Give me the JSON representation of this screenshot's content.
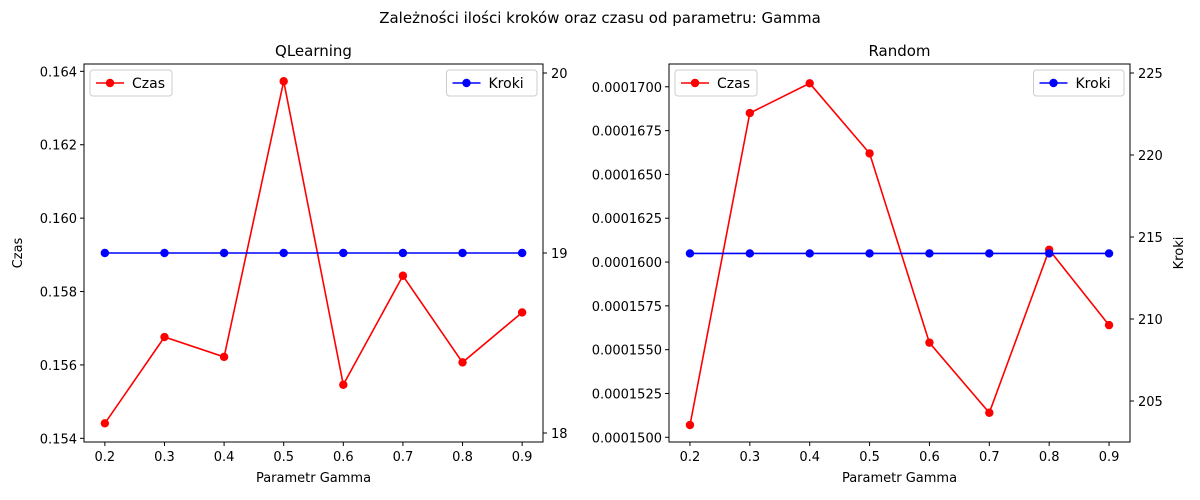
{
  "figure": {
    "suptitle": "Zależności ilości kroków oraz czasu od parametru: Gamma"
  },
  "chart_data": [
    {
      "type": "line",
      "title": "QLearning",
      "xlabel": "Parametr Gamma",
      "ylabel_left": "Czas",
      "ylabel_right": "",
      "x": [
        0.2,
        0.3,
        0.4,
        0.5,
        0.6,
        0.7,
        0.8,
        0.9
      ],
      "x_tick_labels": [
        "0.2",
        "0.3",
        "0.4",
        "0.5",
        "0.6",
        "0.7",
        "0.8",
        "0.9"
      ],
      "xlim": [
        0.165,
        0.935
      ],
      "left_axis": {
        "ylim": [
          0.1539,
          0.1642
        ],
        "ticks": [
          0.154,
          0.156,
          0.158,
          0.16,
          0.162,
          0.164
        ],
        "tick_labels": [
          "0.154",
          "0.156",
          "0.158",
          "0.160",
          "0.162",
          "0.164"
        ]
      },
      "right_axis": {
        "ylim": [
          17.95,
          20.05
        ],
        "ticks": [
          18,
          19,
          20
        ],
        "tick_labels": [
          "18",
          "19",
          "20"
        ]
      },
      "series": [
        {
          "name": "Czas",
          "axis": "left",
          "color": "#ff0000",
          "marker": "circle",
          "values": [
            0.15441,
            0.15676,
            0.15622,
            0.16373,
            0.15546,
            0.15843,
            0.15607,
            0.15743
          ],
          "legend_position": "top-left"
        },
        {
          "name": "Kroki",
          "axis": "right",
          "color": "#0000ff",
          "marker": "circle",
          "values": [
            19,
            19,
            19,
            19,
            19,
            19,
            19,
            19
          ],
          "legend_position": "top-right"
        }
      ],
      "grid": false
    },
    {
      "type": "line",
      "title": "Random",
      "xlabel": "Parametr Gamma",
      "ylabel_left": "",
      "ylabel_right": "Kroki",
      "x": [
        0.2,
        0.3,
        0.4,
        0.5,
        0.6,
        0.7,
        0.8,
        0.9
      ],
      "x_tick_labels": [
        "0.2",
        "0.3",
        "0.4",
        "0.5",
        "0.6",
        "0.7",
        "0.8",
        "0.9"
      ],
      "xlim": [
        0.165,
        0.935
      ],
      "left_axis": {
        "ylim": [
          0.000149731,
          0.000171301
        ],
        "ticks": [
          0.00015,
          0.0001525,
          0.000155,
          0.0001575,
          0.00016,
          0.0001625,
          0.000165,
          0.0001675,
          0.00017
        ],
        "tick_labels": [
          "0.0001500",
          "0.0001525",
          "0.0001550",
          "0.0001575",
          "0.0001600",
          "0.0001625",
          "0.0001650",
          "0.0001675",
          "0.0001700"
        ]
      },
      "right_axis": {
        "ylim": [
          202.5,
          225.55
        ],
        "ticks": [
          205,
          210,
          215,
          220,
          225
        ],
        "tick_labels": [
          "205",
          "210",
          "215",
          "220",
          "225"
        ]
      },
      "series": [
        {
          "name": "Czas",
          "axis": "left",
          "color": "#ff0000",
          "marker": "circle",
          "values": [
            0.0001507,
            0.0001685,
            0.0001702,
            0.0001662,
            0.0001554,
            0.0001514,
            0.0001607,
            0.0001564
          ],
          "legend_position": "top-left"
        },
        {
          "name": "Kroki",
          "axis": "right",
          "color": "#0000ff",
          "marker": "circle",
          "values": [
            214,
            214,
            214,
            214,
            214,
            214,
            214,
            214
          ],
          "legend_position": "top-right"
        }
      ],
      "grid": false
    }
  ]
}
